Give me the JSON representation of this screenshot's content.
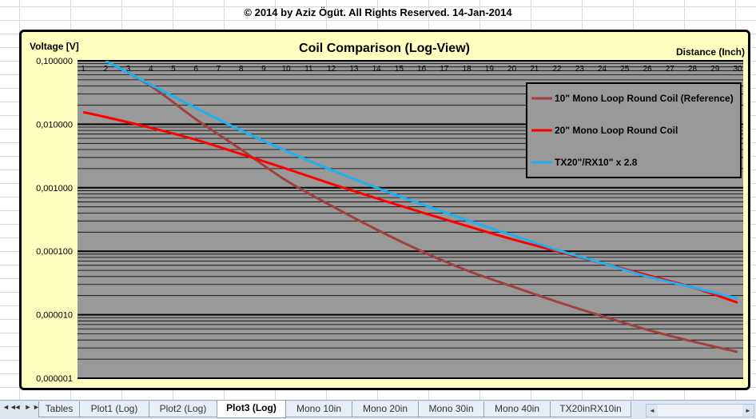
{
  "sheet": {
    "copyright": "© 2014 by Aziz Ögüt. All Rights Reserved. 14-Jan-2014"
  },
  "tabs": [
    {
      "label": "Tables",
      "active": false
    },
    {
      "label": "Plot1 (Log)",
      "active": false
    },
    {
      "label": "Plot2 (Log)",
      "active": false
    },
    {
      "label": "Plot3 (Log)",
      "active": true
    },
    {
      "label": "Mono 10in",
      "active": false
    },
    {
      "label": "Mono 20in",
      "active": false
    },
    {
      "label": "Mono 30in",
      "active": false
    },
    {
      "label": "Mono 40in",
      "active": false
    },
    {
      "label": "TX20inRX10in",
      "active": false
    }
  ],
  "nav": {
    "first": "◄◄",
    "prev": "◄",
    "next": "►",
    "last": "►►"
  },
  "chart_data": {
    "type": "line",
    "title": "Coil Comparison (Log-View)",
    "ylabel": "Voltage  [V]",
    "xlabel": "Distance  (Inch)",
    "y_scale": "log",
    "ylim": [
      1e-06,
      0.1
    ],
    "y_ticks": [
      {
        "value": 0.1,
        "label": "0,100000"
      },
      {
        "value": 0.01,
        "label": "0,010000"
      },
      {
        "value": 0.001,
        "label": "0,001000"
      },
      {
        "value": 0.0001,
        "label": "0,000100"
      },
      {
        "value": 1e-05,
        "label": "0,000010"
      },
      {
        "value": 1e-06,
        "label": "0,000001"
      }
    ],
    "x_ticks": [
      1,
      2,
      3,
      4,
      5,
      6,
      7,
      8,
      9,
      10,
      11,
      12,
      13,
      14,
      15,
      16,
      17,
      18,
      19,
      20,
      21,
      22,
      23,
      24,
      25,
      26,
      27,
      28,
      29,
      30
    ],
    "xlim": [
      1,
      30
    ],
    "x_axis_position": "top",
    "grid": true,
    "legend_position": "top-right",
    "series": [
      {
        "name": "10\" Mono Loop Round Coil (Reference)",
        "color": "#a0403f",
        "x": [
          2,
          4,
          6,
          8,
          10,
          12,
          14,
          16,
          18,
          20,
          22,
          24,
          26,
          28,
          30
        ],
        "y": [
          0.1,
          0.04,
          0.012,
          0.004,
          0.0013,
          0.00052,
          0.00022,
          0.0001,
          5e-05,
          2.8e-05,
          1.6e-05,
          9.5e-06,
          5.8e-06,
          3.8e-06,
          2.6e-06
        ]
      },
      {
        "name": "20\" Mono Loop Round Coil",
        "color": "#ff0000",
        "x": [
          1,
          2,
          4,
          6,
          8,
          10,
          12,
          14,
          16,
          18,
          20,
          22,
          24,
          26,
          28,
          30
        ],
        "y": [
          0.0155,
          0.013,
          0.0088,
          0.0057,
          0.0034,
          0.002,
          0.00115,
          0.00068,
          0.00041,
          0.00025,
          0.000155,
          0.0001,
          6.5e-05,
          4.2e-05,
          2.7e-05,
          1.55e-05
        ]
      },
      {
        "name": "TX20\"/RX10\" x 2.8",
        "color": "#1eb0f0",
        "x": [
          2,
          4,
          6,
          8,
          10,
          12,
          14,
          16,
          18,
          20,
          22,
          24,
          26,
          28,
          30
        ],
        "y": [
          0.1,
          0.042,
          0.018,
          0.008,
          0.0038,
          0.0019,
          0.001,
          0.00055,
          0.00031,
          0.00018,
          0.000105,
          6.5e-05,
          4e-05,
          2.7e-05,
          1.8e-05
        ]
      }
    ]
  }
}
